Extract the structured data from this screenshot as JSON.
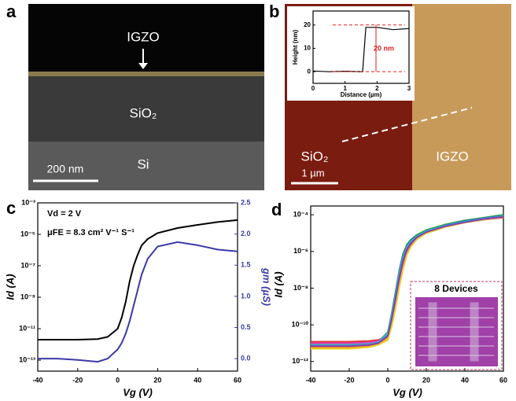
{
  "panel_labels": [
    "a",
    "b",
    "c",
    "d"
  ],
  "panel_a": {
    "labels": [
      "IGZO",
      "SiO₂",
      "Si"
    ],
    "scale_bar": "200 nm"
  },
  "panel_b": {
    "labels": [
      "SiO₂",
      "IGZO"
    ],
    "scale_bar": "1 µm"
  },
  "chart_data": [
    {
      "type": "line",
      "x": [
        -40,
        -30,
        -20,
        -10,
        -5,
        0,
        2,
        4,
        6,
        8,
        10,
        12,
        15,
        20,
        30,
        40,
        50,
        60
      ],
      "xlim": [
        -40,
        60
      ],
      "xticks": [
        -40,
        -20,
        0,
        20,
        40,
        60
      ],
      "xlabel": "Vg (V)",
      "ylabel": "Id (A)",
      "y2label": "gm (µS)",
      "log_y": true,
      "ylim": [
        2e-14,
        0.001
      ],
      "yticks": [
        {
          "value": 1e-13,
          "label": "10⁻¹³"
        },
        {
          "value": 1e-11,
          "label": "10⁻¹¹"
        },
        {
          "value": 1e-09,
          "label": "10⁻⁹"
        },
        {
          "value": 1e-07,
          "label": "10⁻⁷"
        },
        {
          "value": 1e-05,
          "label": "10⁻⁵"
        },
        {
          "value": 0.001,
          "label": "10⁻³"
        }
      ],
      "y2lim": [
        -0.2,
        2.5
      ],
      "y2ticks": [
        {
          "value": 0,
          "label": "0.0"
        },
        0.5,
        {
          "value": 1,
          "label": "1.0"
        },
        1.5,
        {
          "value": 2,
          "label": "2.0"
        },
        2.5
      ],
      "y2color": "#3a3aa8",
      "annotations": [
        "Vd = 2 V",
        "μFE = 8.3 cm² V⁻¹ S⁻¹"
      ],
      "series": [
        {
          "color": "#000000",
          "values": [
            2e-12,
            2e-12,
            2e-12,
            2.2e-12,
            3e-12,
            1e-11,
            5e-11,
            5e-10,
            1e-08,
            1e-07,
            5e-07,
            2e-06,
            5e-06,
            1.2e-05,
            2.5e-05,
            4e-05,
            6e-05,
            8e-05
          ]
        },
        {
          "color": "#3a3aa8",
          "axis": "y2",
          "values": [
            0,
            0,
            -0.02,
            -0.05,
            0,
            0.15,
            0.25,
            0.4,
            0.6,
            0.85,
            1.1,
            1.35,
            1.6,
            1.8,
            1.87,
            1.82,
            1.75,
            1.72
          ]
        }
      ]
    },
    {
      "type": "line",
      "x": [
        -40,
        -30,
        -20,
        -10,
        -5,
        0,
        2,
        4,
        6,
        8,
        10,
        12,
        15,
        20,
        30,
        40,
        50,
        60
      ],
      "xlim": [
        -40,
        60
      ],
      "xticks": [
        -40,
        -20,
        0,
        20,
        40,
        60
      ],
      "xlabel": "Vg (V)",
      "ylabel": "Id (A)",
      "log_y": true,
      "ylim": [
        3e-13,
        0.0003
      ],
      "yticks": [
        {
          "value": 1e-12,
          "label": "10⁻¹²"
        },
        {
          "value": 1e-10,
          "label": "10⁻¹⁰"
        },
        {
          "value": 1e-08,
          "label": "10⁻⁸"
        },
        {
          "value": 1e-06,
          "label": "10⁻⁶"
        },
        {
          "value": 0.0001,
          "label": "10⁻⁴"
        }
      ],
      "annotations": [
        "8 Devices"
      ],
      "series": [
        {
          "color": "#e0302a",
          "values": [
            1.2e-11,
            1.2e-11,
            1.2e-11,
            1.3e-11,
            1.5e-11,
            2.5e-11,
            1e-10,
            1e-09,
            1.5e-08,
            1.5e-07,
            8e-07,
            2e-06,
            5e-06,
            1e-05,
            2.2e-05,
            3.8e-05,
            5.5e-05,
            7e-05
          ]
        },
        {
          "color": "#3aa83a",
          "values": [
            9e-12,
            9e-12,
            9e-12,
            1e-11,
            1.2e-11,
            4e-11,
            4e-10,
            6e-09,
            1e-07,
            8e-07,
            2.5e-06,
            4.5e-06,
            8e-06,
            1.5e-05,
            3e-05,
            5e-05,
            7e-05,
            0.0001
          ]
        },
        {
          "color": "#3060d0",
          "values": [
            7e-12,
            7e-12,
            7e-12,
            8e-12,
            1e-11,
            3e-11,
            3e-10,
            5e-09,
            8e-08,
            6e-07,
            2e-06,
            4e-06,
            7e-06,
            1.3e-05,
            2.7e-05,
            4.5e-05,
            6.5e-05,
            9e-05
          ]
        },
        {
          "color": "#f08c20",
          "values": [
            6e-12,
            6e-12,
            6e-12,
            7e-12,
            9e-12,
            2e-11,
            2e-10,
            3e-09,
            5e-08,
            4e-07,
            1.5e-06,
            3e-06,
            6e-06,
            1.2e-05,
            2.5e-05,
            4e-05,
            6e-05,
            8e-05
          ]
        },
        {
          "color": "#e040c0",
          "values": [
            1e-11,
            1e-11,
            1e-11,
            1.1e-11,
            1.3e-11,
            3e-11,
            1.5e-10,
            2e-09,
            3e-08,
            3e-07,
            1.2e-06,
            2.5e-06,
            5.5e-06,
            1.1e-05,
            2.3e-05,
            3.8e-05,
            5.8e-05,
            7.5e-05
          ]
        },
        {
          "color": "#30b8d0",
          "values": [
            8e-12,
            8e-12,
            8e-12,
            9e-12,
            1.1e-11,
            3.5e-11,
            3e-10,
            4e-09,
            7e-08,
            5e-07,
            1.8e-06,
            3.5e-06,
            6.5e-06,
            1.3e-05,
            2.6e-05,
            4.2e-05,
            6.2e-05,
            8.5e-05
          ]
        },
        {
          "color": "#e8d020",
          "values": [
            5e-12,
            5e-12,
            5e-12,
            6e-12,
            8e-12,
            1.5e-11,
            8e-11,
            8e-10,
            1.2e-08,
            1.2e-07,
            7e-07,
            1.8e-06,
            4.5e-06,
            1e-05,
            2.2e-05,
            3.7e-05,
            5.6e-05,
            7.5e-05
          ]
        },
        {
          "color": "#8040b0",
          "values": [
            7e-12,
            7e-12,
            7e-12,
            8e-12,
            1e-11,
            2.5e-11,
            2e-10,
            2.5e-09,
            4e-08,
            3.5e-07,
            1.4e-06,
            2.8e-06,
            5.8e-06,
            1.15e-05,
            2.4e-05,
            3.9e-05,
            5.9e-05,
            7.8e-05
          ]
        }
      ]
    },
    {
      "type": "line",
      "x": [
        0,
        0.5,
        1,
        1.55,
        1.65,
        2,
        2.5,
        3
      ],
      "xlim": [
        0,
        3
      ],
      "xticks": [
        0,
        1,
        2,
        3
      ],
      "xlabel": "Distance (µm)",
      "ylabel": "Height (nm)",
      "ylim": [
        -5,
        26
      ],
      "yticks": [
        0,
        10,
        20
      ],
      "annotations": [
        "20 nm"
      ],
      "series": [
        {
          "color": "#000000",
          "values": [
            0.3,
            0,
            0.2,
            0,
            19,
            19,
            18,
            18.5
          ]
        }
      ]
    }
  ]
}
